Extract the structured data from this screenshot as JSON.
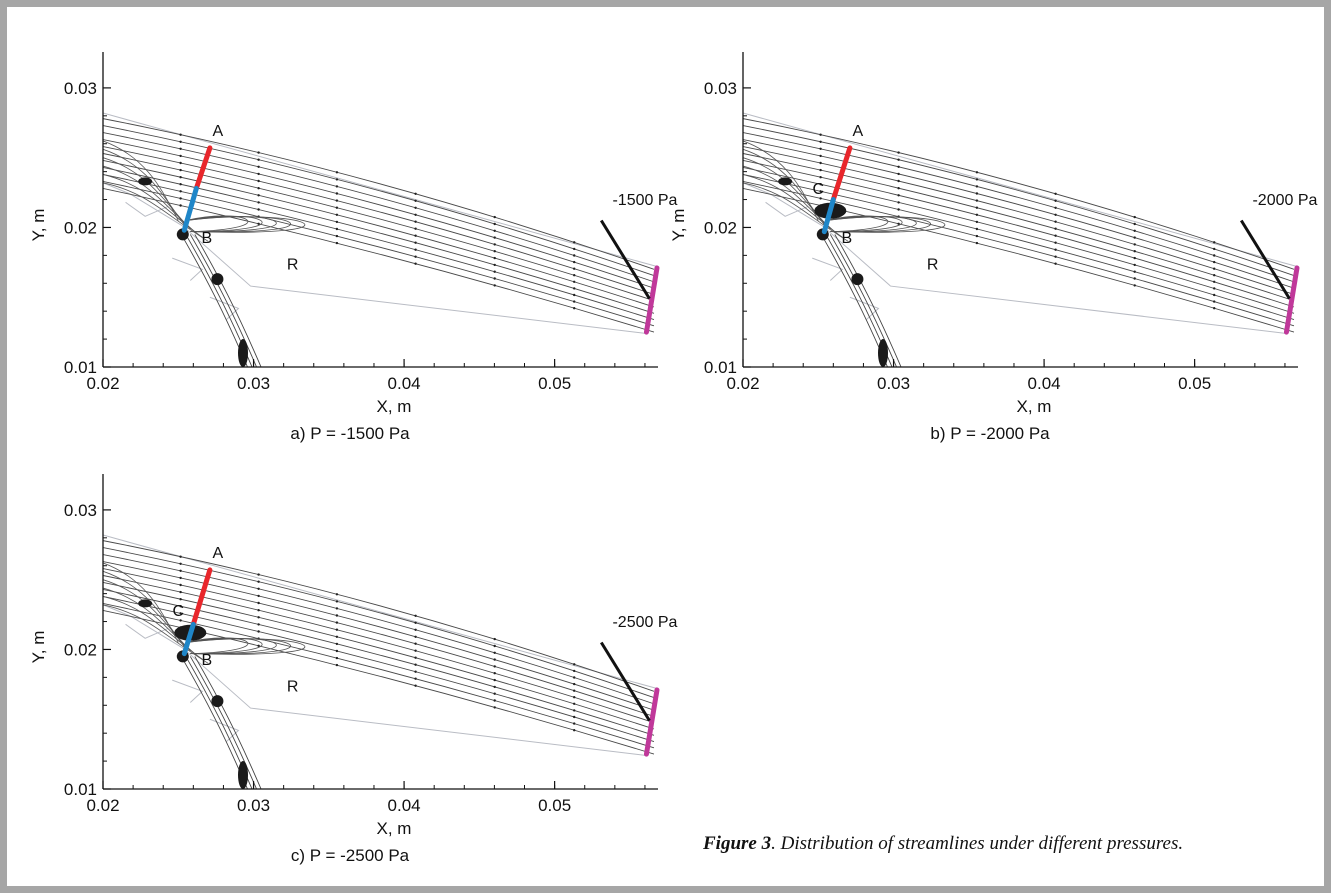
{
  "figure_caption": {
    "number": "Figure 3",
    "text": ". Distribution of streamlines under different pressures."
  },
  "panels": [
    {
      "id": "a",
      "caption": "a) P = -1500 Pa",
      "pressure_label": "-1500 Pa",
      "labels": {
        "A": "A",
        "B": "B",
        "R": "R"
      },
      "show_C": false,
      "chart_data": {
        "type": "streamline_plot",
        "xlabel": "X, m",
        "ylabel": "Y, m",
        "xlim": [
          0.02,
          0.057
        ],
        "ylim": [
          0.01,
          0.032
        ],
        "xticks": [
          "0.02",
          "0.03",
          "0.04",
          "0.05"
        ],
        "yticks": [
          "0.01",
          "0.02",
          "0.03"
        ],
        "segment_A": {
          "color": "#e8262b",
          "from": [
            0.0262,
            0.0228
          ],
          "to": [
            0.0271,
            0.0257
          ]
        },
        "segment_B": {
          "color": "#1f86c8",
          "from": [
            0.0254,
            0.0198
          ],
          "to": [
            0.0262,
            0.0228
          ]
        },
        "outlet": {
          "color": "#c0389a",
          "from": [
            0.0561,
            0.0125
          ],
          "to": [
            0.0568,
            0.0171
          ]
        }
      }
    },
    {
      "id": "b",
      "caption": "b) P = -2000 Pa",
      "pressure_label": "-2000 Pa",
      "labels": {
        "A": "A",
        "B": "B",
        "C": "C",
        "R": "R"
      },
      "show_C": true,
      "chart_data": {
        "type": "streamline_plot",
        "xlabel": "X, m",
        "ylabel": "Y, m",
        "xlim": [
          0.02,
          0.057
        ],
        "ylim": [
          0.01,
          0.032
        ],
        "xticks": [
          "0.02",
          "0.03",
          "0.04",
          "0.05"
        ],
        "yticks": [
          "0.01",
          "0.02",
          "0.03"
        ],
        "segment_A": {
          "color": "#e8262b",
          "from": [
            0.026,
            0.022
          ],
          "to": [
            0.0271,
            0.0257
          ]
        },
        "segment_B": {
          "color": "#1f86c8",
          "from": [
            0.0254,
            0.0197
          ],
          "to": [
            0.026,
            0.022
          ]
        },
        "outlet": {
          "color": "#c0389a",
          "from": [
            0.0561,
            0.0125
          ],
          "to": [
            0.0568,
            0.0171
          ]
        }
      }
    },
    {
      "id": "c",
      "caption": "c) P = -2500 Pa",
      "pressure_label": "-2500 Pa",
      "labels": {
        "A": "A",
        "B": "B",
        "C": "C",
        "R": "R"
      },
      "show_C": true,
      "chart_data": {
        "type": "streamline_plot",
        "xlabel": "X, m",
        "ylabel": "Y, m",
        "xlim": [
          0.02,
          0.057
        ],
        "ylim": [
          0.01,
          0.032
        ],
        "xticks": [
          "0.02",
          "0.03",
          "0.04",
          "0.05"
        ],
        "yticks": [
          "0.01",
          "0.02",
          "0.03"
        ],
        "segment_A": {
          "color": "#e8262b",
          "from": [
            0.026,
            0.0218
          ],
          "to": [
            0.0271,
            0.0257
          ]
        },
        "segment_B": {
          "color": "#1f86c8",
          "from": [
            0.0254,
            0.0197
          ],
          "to": [
            0.026,
            0.0218
          ]
        },
        "outlet": {
          "color": "#c0389a",
          "from": [
            0.0561,
            0.0125
          ],
          "to": [
            0.0568,
            0.0171
          ]
        }
      }
    }
  ]
}
